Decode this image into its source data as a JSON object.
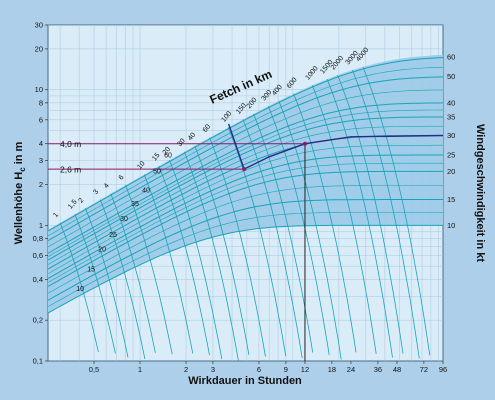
{
  "chart_data": {
    "type": "line",
    "xlabel": "Wirkdauer in Stunden",
    "ylabel_left": "Wellenhöhe H",
    "ylabel_left_sub": "c",
    "ylabel_left_unit": " in m",
    "ylabel_right": "Windgeschwindigkeit in kt",
    "fetch_title": "Fetch in km",
    "x_scale": "log",
    "y_scale": "log",
    "xlim": [
      0.25,
      96
    ],
    "ylim": [
      0.1,
      30
    ],
    "x_ticks": [
      {
        "v": 0.5,
        "label": "0,5"
      },
      {
        "v": 1,
        "label": "1"
      },
      {
        "v": 2,
        "label": "2"
      },
      {
        "v": 3,
        "label": "3"
      },
      {
        "v": 6,
        "label": "6"
      },
      {
        "v": 9,
        "label": "9"
      },
      {
        "v": 12,
        "label": "12"
      },
      {
        "v": 18,
        "label": "18"
      },
      {
        "v": 24,
        "label": "24"
      },
      {
        "v": 36,
        "label": "36"
      },
      {
        "v": 48,
        "label": "48"
      },
      {
        "v": 72,
        "label": "72"
      },
      {
        "v": 96,
        "label": "96"
      }
    ],
    "y_ticks": [
      {
        "v": 0.1,
        "label": "0,1"
      },
      {
        "v": 0.2,
        "label": "0,2"
      },
      {
        "v": 0.4,
        "label": "0,4"
      },
      {
        "v": 0.6,
        "label": "0,6"
      },
      {
        "v": 0.8,
        "label": "0,8"
      },
      {
        "v": 1,
        "label": "1"
      },
      {
        "v": 2,
        "label": "2"
      },
      {
        "v": 3,
        "label": "3"
      },
      {
        "v": 4,
        "label": "4"
      },
      {
        "v": 6,
        "label": "6"
      },
      {
        "v": 8,
        "label": "8"
      },
      {
        "v": 10,
        "label": "10"
      },
      {
        "v": 20,
        "label": "20"
      },
      {
        "v": 30,
        "label": "30"
      }
    ],
    "wind_speeds": [
      {
        "kt": 10,
        "label": "10",
        "h": 1.0
      },
      {
        "kt": 15,
        "label": "15",
        "h": 1.55
      },
      {
        "kt": 20,
        "label": "20",
        "h": 2.5
      },
      {
        "kt": 25,
        "label": "25",
        "h": 3.3
      },
      {
        "kt": 30,
        "label": "30",
        "h": 4.6
      },
      {
        "kt": 35,
        "label": "35",
        "h": 6.3
      },
      {
        "kt": 40,
        "label": "40",
        "h": 8.0
      },
      {
        "kt": 50,
        "label": "50",
        "h": 12.5
      },
      {
        "kt": 60,
        "label": "60",
        "h": 17.5
      }
    ],
    "left_wind_labels": [
      "10",
      "15",
      "20",
      "25",
      "30",
      "35",
      "40",
      "50",
      "60"
    ],
    "fetch_labels": [
      "1",
      "1,5",
      "2",
      "3",
      "4",
      "6",
      "10",
      "15",
      "20",
      "30",
      "40",
      "60",
      "100",
      "150",
      "200",
      "300",
      "400",
      "600",
      "1000",
      "1500",
      "2000",
      "3000",
      "4000"
    ],
    "fetch_km": [
      1,
      1.5,
      2,
      3,
      4,
      6,
      10,
      15,
      20,
      30,
      40,
      60,
      100,
      150,
      200,
      300,
      400,
      600,
      1000,
      1500,
      2000,
      3000,
      4000
    ],
    "annotations": [
      {
        "label": "4,0 m",
        "y": 4.0,
        "x_end": 12
      },
      {
        "label": "2,6 m",
        "y": 2.6,
        "x_end": 4.8
      }
    ],
    "example_path": [
      {
        "x": 3.8,
        "y": 5.6
      },
      {
        "x": 4.8,
        "y": 2.6
      },
      {
        "x": 7,
        "y": 3.2
      },
      {
        "x": 12,
        "y": 4.0
      },
      {
        "x": 24,
        "y": 4.5
      },
      {
        "x": 96,
        "y": 4.6
      }
    ],
    "example_drop_x": 12
  }
}
